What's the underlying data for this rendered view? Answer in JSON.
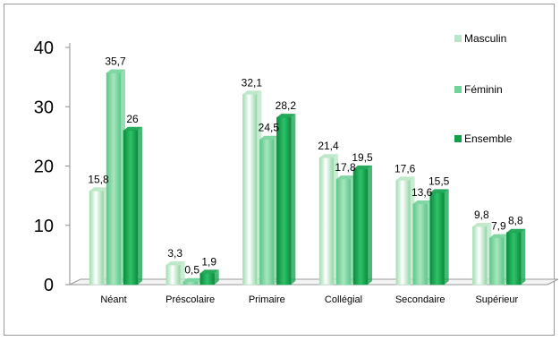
{
  "chart_data": {
    "type": "bar",
    "categories": [
      "Néant",
      "Préscolaire",
      "Primaire",
      "Collégial",
      "Secondaire",
      "Supérieur"
    ],
    "series": [
      {
        "name": "Masculin",
        "values": [
          15.8,
          3.3,
          32.1,
          21.4,
          17.6,
          9.8
        ],
        "labels": [
          "15,8",
          "3,3",
          "32,1",
          "21,4",
          "17,6",
          "9,8"
        ],
        "color": "#b8e6c4"
      },
      {
        "name": "Féminin",
        "values": [
          35.7,
          0.5,
          24.5,
          17.8,
          13.6,
          7.9
        ],
        "labels": [
          "35,7",
          "0,5",
          "24,5",
          "17,8",
          "13,6",
          "7,9"
        ],
        "color": "#72d39a"
      },
      {
        "name": "Ensemble",
        "values": [
          26,
          1.9,
          28.2,
          19.5,
          15.5,
          8.8
        ],
        "labels": [
          "26",
          "1,9",
          "28,2",
          "19,5",
          "15,5",
          "8,8"
        ],
        "color": "#10a04a"
      }
    ],
    "yticks": [
      "0",
      "10",
      "20",
      "30",
      "40"
    ],
    "ylim": [
      0,
      40
    ],
    "legend_position": "right",
    "grid": false
  }
}
